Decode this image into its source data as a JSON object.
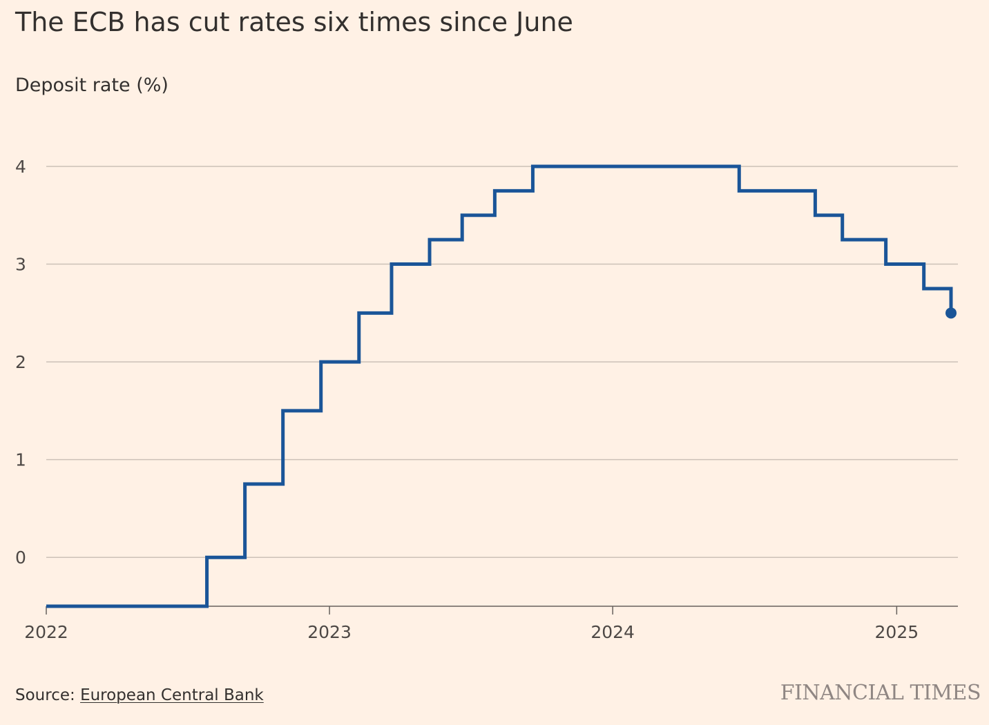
{
  "header": {
    "title": "The ECB has cut rates six times since June",
    "subtitle": "Deposit rate (%)"
  },
  "footer": {
    "source_label": "Source:",
    "source_name": "European Central Bank",
    "brand": "FINANCIAL TIMES"
  },
  "colors": {
    "line": "#1A5598",
    "grid": "#CCC1B7",
    "axis": "#66605C",
    "background": "#FFF1E5"
  },
  "chart_data": {
    "type": "line",
    "step": true,
    "title": "The ECB has cut rates six times since June",
    "ylabel": "Deposit rate (%)",
    "xlabel": "",
    "xlim": [
      "2022-01-01",
      "2025-03-12"
    ],
    "ylim": [
      -0.5,
      4
    ],
    "yticks": [
      0,
      1,
      2,
      3,
      4
    ],
    "xticks": [
      {
        "date": "2022-01-01",
        "label": "2022"
      },
      {
        "date": "2023-01-01",
        "label": "2023"
      },
      {
        "date": "2024-01-01",
        "label": "2024"
      },
      {
        "date": "2025-01-01",
        "label": "2025"
      }
    ],
    "grid": true,
    "legend": "none",
    "series": [
      {
        "points": [
          {
            "date": "2022-01-01",
            "value": -0.5
          },
          {
            "date": "2022-07-27",
            "value": 0
          },
          {
            "date": "2022-09-14",
            "value": 0.75
          },
          {
            "date": "2022-11-02",
            "value": 1.5
          },
          {
            "date": "2022-12-21",
            "value": 2
          },
          {
            "date": "2023-02-08",
            "value": 2.5
          },
          {
            "date": "2023-03-22",
            "value": 3
          },
          {
            "date": "2023-05-10",
            "value": 3.25
          },
          {
            "date": "2023-06-21",
            "value": 3.5
          },
          {
            "date": "2023-08-02",
            "value": 3.75
          },
          {
            "date": "2023-09-20",
            "value": 4
          },
          {
            "date": "2024-06-12",
            "value": 3.75
          },
          {
            "date": "2024-09-18",
            "value": 3.5
          },
          {
            "date": "2024-10-23",
            "value": 3.25
          },
          {
            "date": "2024-12-18",
            "value": 3
          },
          {
            "date": "2025-02-05",
            "value": 2.75
          },
          {
            "date": "2025-03-12",
            "value": 2.5
          }
        ]
      }
    ]
  }
}
